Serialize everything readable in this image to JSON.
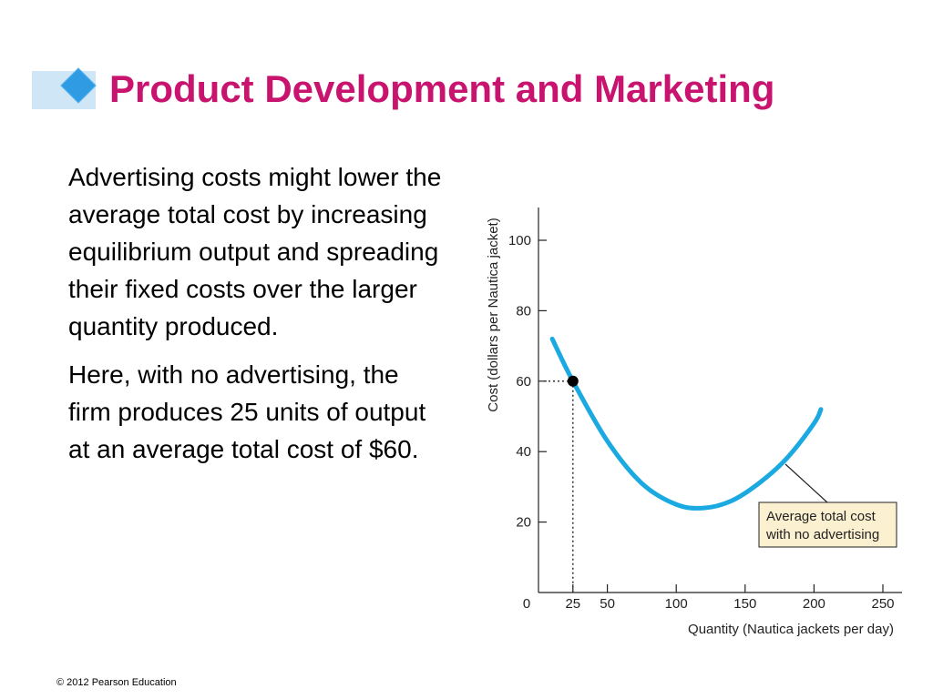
{
  "slide": {
    "title": "Product Development and Marketing",
    "paragraphs": [
      "Advertising costs might lower the average total cost by increasing equilibrium output and spreading their fixed costs over the larger quantity produced.",
      "Here, with no advertising, the firm produces 25 units of output at an average total cost of $60."
    ],
    "footer": "© 2012 Pearson Education",
    "colors": {
      "title": "#c8136f",
      "curve": "#1aa9e0",
      "annotation_box": "#fbf0cf"
    }
  },
  "chart_data": {
    "type": "line",
    "xlabel": "Quantity (Nautica jackets per day)",
    "ylabel": "Cost (dollars per Nautica jacket)",
    "xlim": [
      0,
      260
    ],
    "ylim": [
      0,
      110
    ],
    "x_ticks": [
      0,
      25,
      50,
      100,
      150,
      200,
      250
    ],
    "y_ticks": [
      20,
      40,
      60,
      80,
      100
    ],
    "series": [
      {
        "x": [
          10,
          25,
          50,
          75,
          100,
          120,
          140,
          160,
          180,
          200,
          205
        ],
        "y": [
          72,
          60,
          43,
          31,
          25,
          24,
          26,
          31,
          38,
          48,
          52
        ]
      }
    ],
    "point": {
      "x": 25,
      "y": 60
    },
    "annotation": {
      "lines": [
        "Average total cost",
        "with no advertising"
      ]
    }
  }
}
